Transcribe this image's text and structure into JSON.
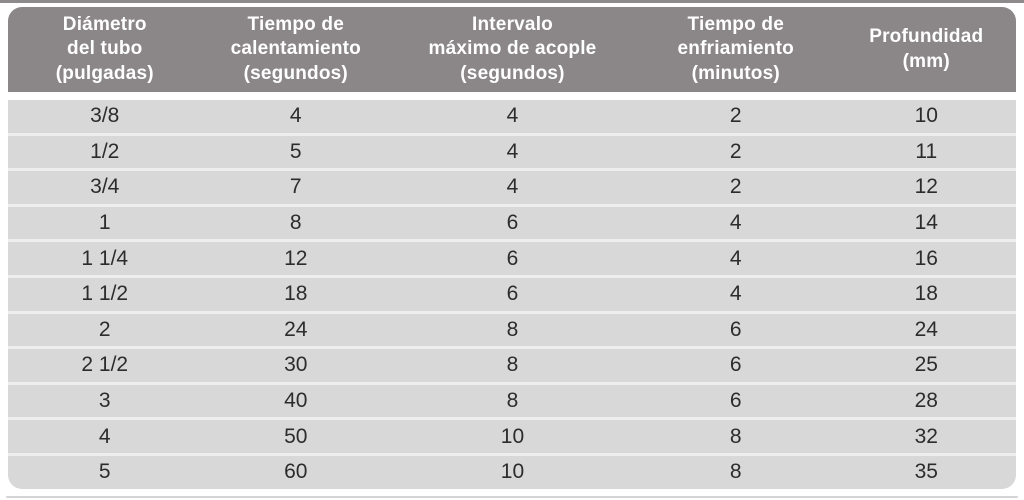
{
  "header_lines": [
    "Diámetro\ndel tubo\n(pulgadas)",
    "Tiempo de\ncalentamiento\n(segundos)",
    "Intervalo\nmáximo de acople\n(segundos)",
    "Tiempo de\nenfriamiento\n(minutos)",
    "Profundidad\n(mm)"
  ],
  "chart_data": {
    "type": "table",
    "columns": [
      "Diámetro del tubo (pulgadas)",
      "Tiempo de calentamiento (segundos)",
      "Intervalo máximo de acople (segundos)",
      "Tiempo de enfriamiento (minutos)",
      "Profundidad (mm)"
    ],
    "rows": [
      [
        "3/8",
        "4",
        "4",
        "2",
        "10"
      ],
      [
        "1/2",
        "5",
        "4",
        "2",
        "11"
      ],
      [
        "3/4",
        "7",
        "4",
        "2",
        "12"
      ],
      [
        "1",
        "8",
        "6",
        "4",
        "14"
      ],
      [
        "1 1/4",
        "12",
        "6",
        "4",
        "16"
      ],
      [
        "1 1/2",
        "18",
        "6",
        "4",
        "18"
      ],
      [
        "2",
        "24",
        "8",
        "6",
        "24"
      ],
      [
        "2 1/2",
        "30",
        "8",
        "6",
        "25"
      ],
      [
        "3",
        "40",
        "8",
        "6",
        "28"
      ],
      [
        "4",
        "50",
        "10",
        "8",
        "32"
      ],
      [
        "5",
        "60",
        "10",
        "8",
        "35"
      ]
    ]
  },
  "colors": {
    "header_bg": "#8b8788",
    "header_text": "#ffffff",
    "row_bg": "#d9d8d8",
    "row_separator": "#efeeee",
    "body_text": "#2d2c2d",
    "top_rule": "#8c8a8b",
    "bottom_rule": "#d6d5d5"
  }
}
